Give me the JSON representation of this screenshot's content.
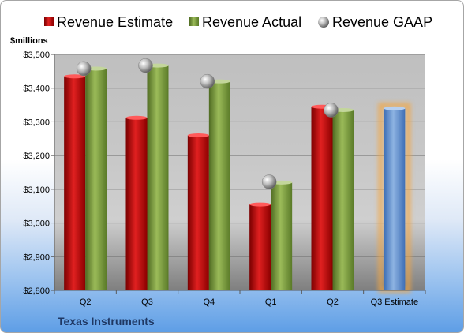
{
  "chart_data": {
    "type": "bar",
    "title": "",
    "unit_label": "$millions",
    "footer": "Texas Instruments",
    "categories": [
      "Q2",
      "Q3",
      "Q4",
      "Q1",
      "Q2",
      "Q3 Estimate"
    ],
    "ylim": [
      2800,
      3500
    ],
    "yticks": [
      2800,
      2900,
      3000,
      3100,
      3200,
      3300,
      3400,
      3500
    ],
    "ytick_labels": [
      "$2,800",
      "$2,900",
      "$3,000",
      "$3,100",
      "$3,200",
      "$3,300",
      "$3,400",
      "$3,500"
    ],
    "grid": true,
    "legend_position": "top",
    "series": [
      {
        "name": "Revenue Estimate",
        "mark": "bar",
        "color": "#c00000",
        "values": [
          3435,
          3312,
          3260,
          3055,
          3345,
          null
        ]
      },
      {
        "name": "Revenue Actual",
        "mark": "bar",
        "color": "#77933c",
        "values": [
          3458,
          3467,
          3420,
          3120,
          3335,
          3340
        ]
      },
      {
        "name": "Revenue GAAP",
        "mark": "circle",
        "color": "#a6a6a6",
        "values": [
          3458,
          3467,
          3420,
          3122,
          3335,
          null
        ]
      }
    ],
    "highlight": {
      "category_index": 5,
      "color": "#5b8fd6",
      "glow": "#f4a640"
    }
  }
}
